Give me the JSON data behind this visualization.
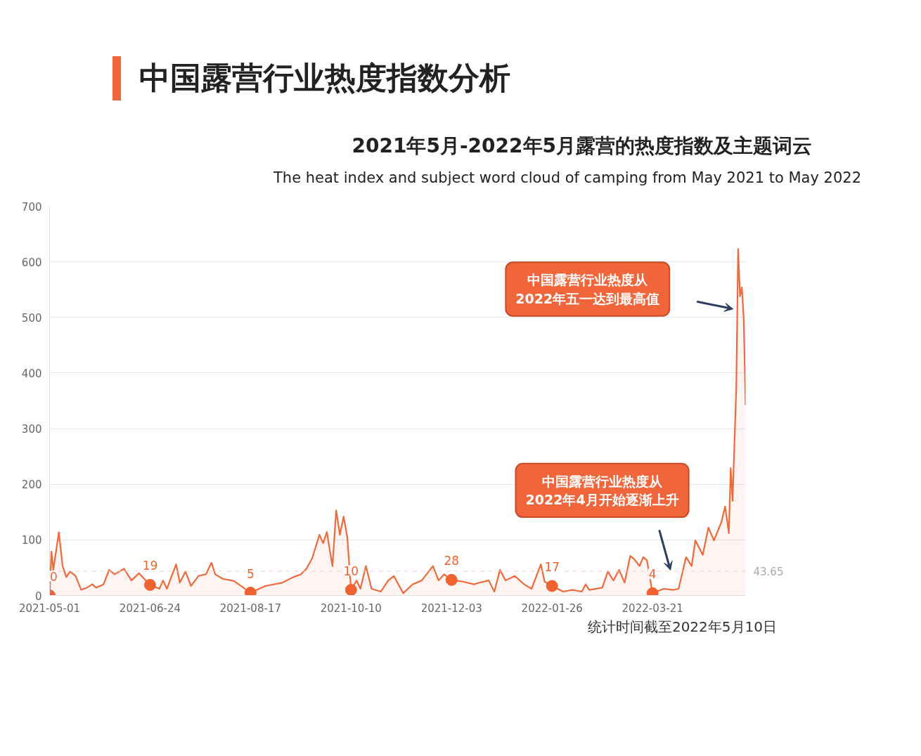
{
  "chart_data": {
    "type": "area",
    "title": "中国露营行业热度指数分析",
    "subtitle": "2021年5月-2022年5月露营的热度指数及主题词云",
    "annotations": [
      "The heat index and subject word cloud of camping from May 2021 to May 2022",
      "统计时间截至2022年5月10日",
      "中国露营行业热度从\n2022年五一达到最高值",
      "中国露营行业热度从\n2022年4月开始逐渐上升"
    ],
    "xlim": [
      "2021-05-01",
      "2022-05-10"
    ],
    "xticks": [
      "2021-05-01",
      "2021-06-24",
      "2021-08-17",
      "2021-10-10",
      "2021-12-03",
      "2022-01-26",
      "2022-03-21"
    ],
    "ylim": [
      0,
      700
    ],
    "yticks": [
      0,
      100,
      200,
      300,
      400,
      500,
      600,
      700
    ],
    "grid": "y",
    "ref_lines": [
      {
        "axis": "y",
        "value": 43.65,
        "label": "43.65",
        "color": "#f5cdbf",
        "line_style": "dashed"
      }
    ],
    "series": [
      {
        "color": "#ee6a3c",
        "x": [
          "2021-05-01",
          "2021-05-02",
          "2021-05-03",
          "2021-05-06",
          "2021-05-08",
          "2021-05-10",
          "2021-05-12",
          "2021-05-15",
          "2021-05-18",
          "2021-05-21",
          "2021-05-24",
          "2021-05-26",
          "2021-05-30",
          "2021-06-02",
          "2021-06-05",
          "2021-06-10",
          "2021-06-14",
          "2021-06-18",
          "2021-06-24",
          "2021-06-29",
          "2021-07-01",
          "2021-07-03",
          "2021-07-08",
          "2021-07-10",
          "2021-07-13",
          "2021-07-16",
          "2021-07-20",
          "2021-07-24",
          "2021-07-27",
          "2021-07-29",
          "2021-08-02",
          "2021-08-08",
          "2021-08-12",
          "2021-08-17",
          "2021-08-25",
          "2021-09-03",
          "2021-09-09",
          "2021-09-13",
          "2021-09-16",
          "2021-09-19",
          "2021-09-23",
          "2021-09-25",
          "2021-09-27",
          "2021-09-30",
          "2021-10-02",
          "2021-10-04",
          "2021-10-06",
          "2021-10-08",
          "2021-10-10",
          "2021-10-13",
          "2021-10-15",
          "2021-10-18",
          "2021-10-21",
          "2021-10-26",
          "2021-10-30",
          "2021-11-02",
          "2021-11-07",
          "2021-11-12",
          "2021-11-17",
          "2021-11-23",
          "2021-11-26",
          "2021-11-29",
          "2021-12-03",
          "2021-12-09",
          "2021-12-15",
          "2021-12-18",
          "2021-12-23",
          "2021-12-26",
          "2021-12-29",
          "2022-01-01",
          "2022-01-06",
          "2022-01-11",
          "2022-01-15",
          "2022-01-20",
          "2022-01-22",
          "2022-01-26",
          "2022-02-01",
          "2022-02-06",
          "2022-02-11",
          "2022-02-13",
          "2022-02-15",
          "2022-02-22",
          "2022-02-25",
          "2022-02-28",
          "2022-03-03",
          "2022-03-06",
          "2022-03-09",
          "2022-03-11",
          "2022-03-14",
          "2022-03-16",
          "2022-03-18",
          "2022-03-21",
          "2022-03-27",
          "2022-04-01",
          "2022-04-04",
          "2022-04-08",
          "2022-04-11",
          "2022-04-13",
          "2022-04-17",
          "2022-04-20",
          "2022-04-23",
          "2022-04-27",
          "2022-04-29",
          "2022-05-01",
          "2022-05-02",
          "2022-05-03",
          "2022-05-05",
          "2022-05-06",
          "2022-05-07",
          "2022-05-08",
          "2022-05-09",
          "2022-05-10"
        ],
        "values": [
          0,
          79,
          46,
          114,
          53,
          33,
          43,
          35,
          10,
          14,
          20,
          14,
          20,
          46,
          38,
          48,
          27,
          40,
          19,
          12,
          27,
          12,
          56,
          23,
          43,
          17,
          35,
          38,
          59,
          38,
          30,
          26,
          17,
          5,
          17,
          23,
          33,
          38,
          48,
          66,
          109,
          94,
          114,
          53,
          153,
          109,
          142,
          104,
          10,
          27,
          12,
          53,
          12,
          7,
          27,
          35,
          4,
          20,
          27,
          53,
          27,
          38,
          28,
          25,
          20,
          23,
          27,
          7,
          46,
          27,
          35,
          20,
          12,
          56,
          25,
          17,
          7,
          10,
          7,
          20,
          10,
          14,
          43,
          27,
          46,
          23,
          71,
          66,
          53,
          69,
          63,
          4,
          12,
          10,
          12,
          69,
          53,
          99,
          73,
          122,
          99,
          132,
          160,
          112,
          229,
          170,
          375,
          623,
          538,
          554,
          498,
          342
        ]
      },
      {
        "type": "scatter",
        "color": "#f0622f",
        "marker": "circle",
        "x": [
          "2021-05-01",
          "2021-06-24",
          "2021-08-17",
          "2021-10-10",
          "2021-12-03",
          "2022-01-26",
          "2022-03-21"
        ],
        "values": [
          0,
          19,
          5,
          10,
          28,
          17,
          4
        ],
        "value_labels": [
          "0",
          "19",
          "5",
          "10",
          "28",
          "17",
          "4"
        ]
      }
    ]
  }
}
